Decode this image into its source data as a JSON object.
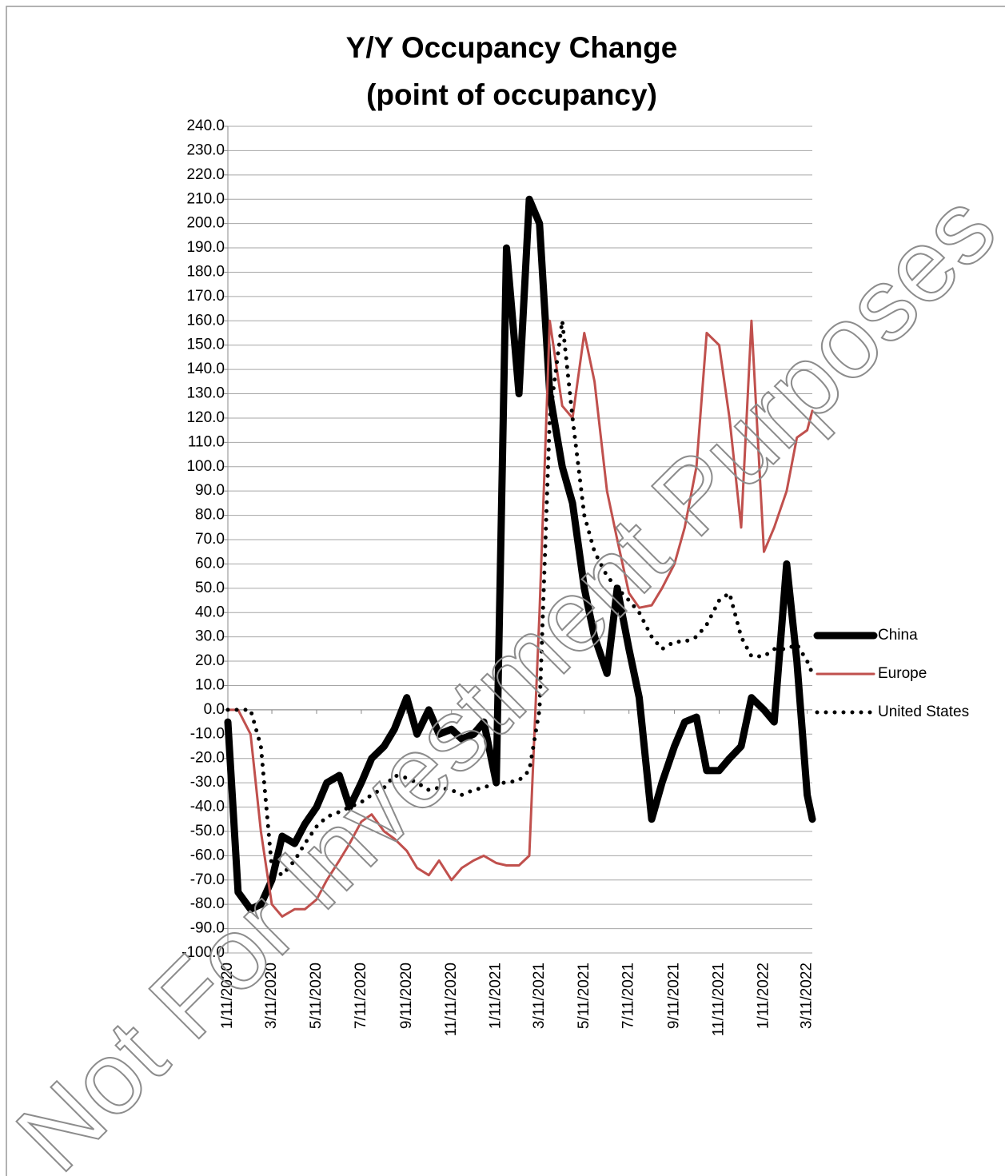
{
  "chart_data": {
    "type": "line",
    "title": "Y/Y Occupancy Change",
    "subtitle": "(point of occupancy)",
    "watermark": "Not For Investment Purposes",
    "x": [
      "1/11/2020",
      "1/25/2020",
      "2/11/2020",
      "2/25/2020",
      "3/11/2020",
      "3/25/2020",
      "4/11/2020",
      "4/25/2020",
      "5/11/2020",
      "5/25/2020",
      "6/11/2020",
      "6/25/2020",
      "7/11/2020",
      "7/25/2020",
      "8/11/2020",
      "8/25/2020",
      "9/11/2020",
      "9/25/2020",
      "10/11/2020",
      "10/25/2020",
      "11/11/2020",
      "11/25/2020",
      "12/11/2020",
      "12/25/2020",
      "1/11/2021",
      "1/25/2021",
      "2/11/2021",
      "2/25/2021",
      "3/11/2021",
      "3/25/2021",
      "4/11/2021",
      "4/25/2021",
      "5/11/2021",
      "5/25/2021",
      "6/11/2021",
      "6/25/2021",
      "7/11/2021",
      "7/25/2021",
      "8/11/2021",
      "8/25/2021",
      "9/11/2021",
      "9/25/2021",
      "10/11/2021",
      "10/25/2021",
      "11/11/2021",
      "11/25/2021",
      "12/11/2021",
      "12/25/2021",
      "1/11/2022",
      "1/25/2022",
      "2/11/2022",
      "2/25/2022",
      "3/11/2022",
      "3/18/2022"
    ],
    "xlim": [
      "1/11/2020",
      "3/18/2022"
    ],
    "xticks": [
      "1/11/2020",
      "3/11/2020",
      "5/11/2020",
      "7/11/2020",
      "9/11/2020",
      "11/11/2020",
      "1/11/2021",
      "3/11/2021",
      "5/11/2021",
      "7/11/2021",
      "9/11/2021",
      "11/11/2021",
      "1/11/2022",
      "3/11/2022"
    ],
    "ylim": [
      -100,
      240
    ],
    "yticks": [
      {
        "value": 240,
        "label": "240.0"
      },
      {
        "value": 230,
        "label": "230.0"
      },
      {
        "value": 220,
        "label": "220.0"
      },
      {
        "value": 210,
        "label": "210.0"
      },
      {
        "value": 200,
        "label": "200.0"
      },
      {
        "value": 190,
        "label": "190.0"
      },
      {
        "value": 180,
        "label": "180.0"
      },
      {
        "value": 170,
        "label": "170.0"
      },
      {
        "value": 160,
        "label": "160.0"
      },
      {
        "value": 150,
        "label": "150.0"
      },
      {
        "value": 140,
        "label": "140.0"
      },
      {
        "value": 130,
        "label": "130.0"
      },
      {
        "value": 120,
        "label": "120.0"
      },
      {
        "value": 110,
        "label": "110.0"
      },
      {
        "value": 100,
        "label": "100.0"
      },
      {
        "value": 90,
        "label": "90.0"
      },
      {
        "value": 80,
        "label": "80.0"
      },
      {
        "value": 70,
        "label": "70.0"
      },
      {
        "value": 60,
        "label": "60.0"
      },
      {
        "value": 50,
        "label": "50.0"
      },
      {
        "value": 40,
        "label": "40.0"
      },
      {
        "value": 30,
        "label": "30.0"
      },
      {
        "value": 20,
        "label": "20.0"
      },
      {
        "value": 10,
        "label": "10.0"
      },
      {
        "value": 0,
        "label": "0.0"
      },
      {
        "value": -10,
        "label": "-10.0"
      },
      {
        "value": -20,
        "label": "-20.0"
      },
      {
        "value": -30,
        "label": "-30.0"
      },
      {
        "value": -40,
        "label": "-40.0"
      },
      {
        "value": -50,
        "label": "-50.0"
      },
      {
        "value": -60,
        "label": "-60.0"
      },
      {
        "value": -70,
        "label": "-70.0"
      },
      {
        "value": -80,
        "label": "-80.0"
      },
      {
        "value": -90,
        "label": "-90.0"
      },
      {
        "value": -100,
        "label": "-100.0"
      }
    ],
    "grid": true,
    "legend": "right",
    "series": [
      {
        "name": "China",
        "color": "#000000",
        "width": 9,
        "style": "solid",
        "values": [
          -5,
          -75,
          -82,
          -80,
          -70,
          -52,
          -55,
          -47,
          -40,
          -30,
          -27,
          -40,
          -30,
          -20,
          -15,
          -8,
          5,
          -10,
          0,
          -10,
          -8,
          -12,
          -10,
          -5,
          -30,
          190,
          130,
          210,
          200,
          130,
          100,
          85,
          50,
          30,
          15,
          50,
          25,
          5,
          -45,
          -30,
          -15,
          -5,
          -3,
          -25,
          -25,
          -20,
          -15,
          5,
          0,
          -5,
          60,
          20,
          -35,
          -45
        ]
      },
      {
        "name": "Europe",
        "color": "#c0504d",
        "width": 3,
        "style": "solid",
        "values": [
          0,
          0,
          -10,
          -50,
          -80,
          -85,
          -82,
          -82,
          -78,
          -70,
          -62,
          -55,
          -46,
          -43,
          -50,
          -53,
          -58,
          -65,
          -68,
          -62,
          -70,
          -65,
          -62,
          -60,
          -63,
          -64,
          -64,
          -60,
          40,
          160,
          125,
          120,
          155,
          135,
          90,
          70,
          48,
          42,
          43,
          50,
          60,
          75,
          100,
          155,
          150,
          120,
          75,
          160,
          65,
          75,
          90,
          112,
          115,
          123
        ]
      },
      {
        "name": "United States",
        "color": "#000000",
        "width": 5,
        "style": "dotted",
        "values": [
          0,
          0,
          0,
          -15,
          -65,
          -68,
          -62,
          -55,
          -48,
          -44,
          -42,
          -40,
          -38,
          -35,
          -32,
          -27,
          -28,
          -30,
          -33,
          -32,
          -33,
          -35,
          -33,
          -32,
          -30,
          -30,
          -29,
          -25,
          0,
          120,
          160,
          120,
          80,
          65,
          55,
          50,
          45,
          40,
          30,
          25,
          28,
          28,
          30,
          35,
          45,
          48,
          30,
          22,
          22,
          25,
          25,
          27,
          20,
          15
        ]
      }
    ]
  }
}
